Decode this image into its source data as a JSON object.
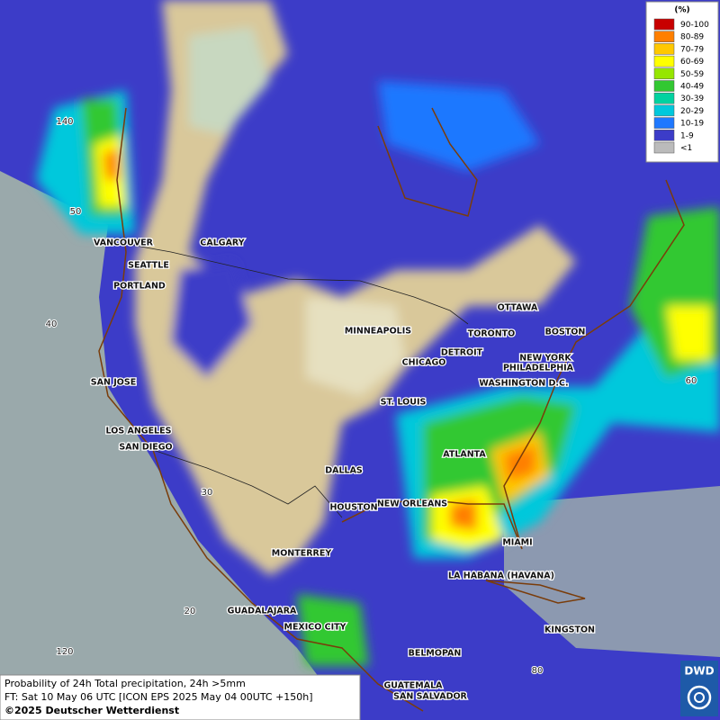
{
  "title": "Probability of 24h Total precipitation, 24h >5mm",
  "forecast": "FT: Sat 10 May 06 UTC [ICON EPS 2025 May 04 00UTC +150h]",
  "copyright": "©2025 Deutscher Wetterdienst",
  "logo": "DWD",
  "legend": {
    "unit": "(%)",
    "items": [
      {
        "label": "90-100",
        "color": "#c80000"
      },
      {
        "label": "80-89",
        "color": "#ff7f00"
      },
      {
        "label": "70-79",
        "color": "#ffc800"
      },
      {
        "label": "60-69",
        "color": "#ffff00"
      },
      {
        "label": "50-59",
        "color": "#96e600"
      },
      {
        "label": "40-49",
        "color": "#32c832"
      },
      {
        "label": "30-39",
        "color": "#00d2a0"
      },
      {
        "label": "20-29",
        "color": "#00c8dc"
      },
      {
        "label": "10-19",
        "color": "#1e78ff"
      },
      {
        "label": "1-9",
        "color": "#3c3cc8"
      },
      {
        "label": "<1",
        "color": "#bbbbbb"
      }
    ]
  },
  "cities": [
    "VANCOUVER",
    "CALGARY",
    "SEATTLE",
    "PORTLAND",
    "OTTAWA",
    "MINNEAPOLIS",
    "TORONTO",
    "BOSTON",
    "DETROIT",
    "NEW YORK",
    "CHICAGO",
    "PHILADELPHIA",
    "WASHINGTON D.C.",
    "SAN JOSE",
    "ST. LOUIS",
    "LOS ANGELES",
    "SAN DIEGO",
    "ATLANTA",
    "DALLAS",
    "NEW ORLEANS",
    "HOUSTON",
    "MIAMI",
    "MONTERREY",
    "LA HABANA (HAVANA)",
    "GUADALAJARA",
    "MEXICO CITY",
    "KINGSTON",
    "BELMOPAN",
    "GUATEMALA",
    "SAN SALVADOR"
  ],
  "graticule_labels": [
    "140",
    "50",
    "40",
    "30",
    "20",
    "120",
    "60",
    "80"
  ]
}
